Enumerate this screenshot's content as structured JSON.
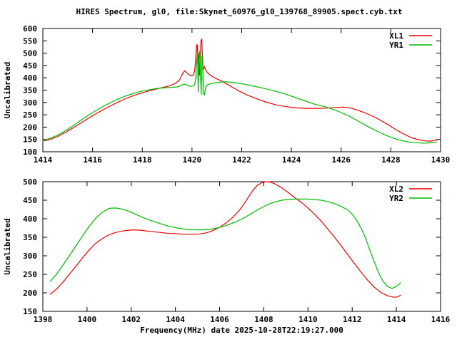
{
  "title": "HIRES Spectrum, gl0, file:Skynet_60976_gl0_139768_89905.spect.cyb.txt",
  "background": "#ffffff",
  "text_color": "#000000",
  "axis_color": "#000000",
  "chart_data": [
    {
      "type": "line",
      "panel": "top",
      "ylabel": "Uncalibrated",
      "xlim": [
        1414,
        1430
      ],
      "ylim": [
        100,
        600
      ],
      "xticks": [
        1414,
        1416,
        1418,
        1420,
        1422,
        1424,
        1426,
        1428,
        1430
      ],
      "yticks": [
        100,
        150,
        200,
        250,
        300,
        350,
        400,
        450,
        500,
        550,
        600
      ],
      "grid": false,
      "legend_position": "top-right",
      "series": [
        {
          "name": "XL1",
          "color": "#ee0000",
          "points": [
            [
              1414.05,
              144
            ],
            [
              1414.3,
              150
            ],
            [
              1414.6,
              162
            ],
            [
              1414.9,
              178
            ],
            [
              1415.2,
              196
            ],
            [
              1415.5,
              215
            ],
            [
              1415.8,
              234
            ],
            [
              1416.1,
              252
            ],
            [
              1416.4,
              269
            ],
            [
              1416.7,
              285
            ],
            [
              1417.0,
              300
            ],
            [
              1417.3,
              314
            ],
            [
              1417.6,
              326
            ],
            [
              1417.9,
              336
            ],
            [
              1418.2,
              345
            ],
            [
              1418.5,
              353
            ],
            [
              1418.8,
              360
            ],
            [
              1419.1,
              367
            ],
            [
              1419.35,
              378
            ],
            [
              1419.5,
              392
            ],
            [
              1419.6,
              412
            ],
            [
              1419.7,
              428
            ],
            [
              1419.78,
              422
            ],
            [
              1419.85,
              414
            ],
            [
              1419.95,
              408
            ],
            [
              1420.05,
              410
            ],
            [
              1420.1,
              425
            ],
            [
              1420.14,
              462
            ],
            [
              1420.18,
              530
            ],
            [
              1420.21,
              535
            ],
            [
              1420.24,
              450
            ],
            [
              1420.27,
              500
            ],
            [
              1420.3,
              410
            ],
            [
              1420.33,
              470
            ],
            [
              1420.36,
              550
            ],
            [
              1420.39,
              557
            ],
            [
              1420.42,
              490
            ],
            [
              1420.45,
              432
            ],
            [
              1420.5,
              445
            ],
            [
              1420.56,
              430
            ],
            [
              1420.63,
              420
            ],
            [
              1420.72,
              412
            ],
            [
              1420.82,
              405
            ],
            [
              1420.95,
              398
            ],
            [
              1421.1,
              391
            ],
            [
              1421.3,
              381
            ],
            [
              1421.6,
              363
            ],
            [
              1421.9,
              346
            ],
            [
              1422.2,
              331
            ],
            [
              1422.6,
              315
            ],
            [
              1423.0,
              301
            ],
            [
              1423.4,
              290
            ],
            [
              1423.8,
              283
            ],
            [
              1424.2,
              278
            ],
            [
              1424.6,
              276
            ],
            [
              1425.0,
              276
            ],
            [
              1425.4,
              277
            ],
            [
              1425.8,
              280
            ],
            [
              1426.1,
              281
            ],
            [
              1426.4,
              277
            ],
            [
              1426.7,
              268
            ],
            [
              1427.0,
              256
            ],
            [
              1427.3,
              243
            ],
            [
              1427.6,
              227
            ],
            [
              1427.9,
              209
            ],
            [
              1428.2,
              190
            ],
            [
              1428.5,
              173
            ],
            [
              1428.8,
              158
            ],
            [
              1429.1,
              149
            ],
            [
              1429.4,
              144
            ],
            [
              1429.6,
              143
            ],
            [
              1429.85,
              148
            ]
          ]
        },
        {
          "name": "YR1",
          "color": "#00bb00",
          "points": [
            [
              1414.05,
              147
            ],
            [
              1414.35,
              156
            ],
            [
              1414.65,
              170
            ],
            [
              1414.95,
              188
            ],
            [
              1415.25,
              208
            ],
            [
              1415.55,
              229
            ],
            [
              1415.85,
              249
            ],
            [
              1416.15,
              268
            ],
            [
              1416.45,
              285
            ],
            [
              1416.75,
              301
            ],
            [
              1417.05,
              315
            ],
            [
              1417.35,
              327
            ],
            [
              1417.65,
              337
            ],
            [
              1417.95,
              345
            ],
            [
              1418.25,
              351
            ],
            [
              1418.55,
              356
            ],
            [
              1418.85,
              359
            ],
            [
              1419.15,
              361
            ],
            [
              1419.4,
              363
            ],
            [
              1419.55,
              368
            ],
            [
              1419.65,
              374
            ],
            [
              1419.75,
              373
            ],
            [
              1419.85,
              367
            ],
            [
              1419.95,
              365
            ],
            [
              1420.05,
              368
            ],
            [
              1420.1,
              372
            ],
            [
              1420.15,
              394
            ],
            [
              1420.19,
              465
            ],
            [
              1420.22,
              500
            ],
            [
              1420.25,
              342
            ],
            [
              1420.28,
              478
            ],
            [
              1420.31,
              508
            ],
            [
              1420.34,
              420
            ],
            [
              1420.37,
              332
            ],
            [
              1420.4,
              488
            ],
            [
              1420.43,
              458
            ],
            [
              1420.46,
              336
            ],
            [
              1420.5,
              331
            ],
            [
              1420.56,
              366
            ],
            [
              1420.65,
              373
            ],
            [
              1420.8,
              377
            ],
            [
              1421.0,
              380
            ],
            [
              1421.25,
              384
            ],
            [
              1421.5,
              383
            ],
            [
              1421.8,
              379
            ],
            [
              1422.1,
              374
            ],
            [
              1422.5,
              366
            ],
            [
              1422.9,
              357
            ],
            [
              1423.3,
              347
            ],
            [
              1423.7,
              336
            ],
            [
              1424.1,
              322
            ],
            [
              1424.5,
              308
            ],
            [
              1424.9,
              294
            ],
            [
              1425.3,
              284
            ],
            [
              1425.7,
              271
            ],
            [
              1426.0,
              259
            ],
            [
              1426.3,
              246
            ],
            [
              1426.6,
              229
            ],
            [
              1426.9,
              212
            ],
            [
              1427.2,
              196
            ],
            [
              1427.5,
              181
            ],
            [
              1427.8,
              167
            ],
            [
              1428.1,
              155
            ],
            [
              1428.4,
              146
            ],
            [
              1428.7,
              140
            ],
            [
              1429.0,
              137
            ],
            [
              1429.3,
              135
            ],
            [
              1429.6,
              136
            ],
            [
              1429.85,
              140
            ]
          ]
        }
      ]
    },
    {
      "type": "line",
      "panel": "bottom",
      "xlabel": "Frequency(MHz) date 2025-10-28T22:19:27.000",
      "ylabel": "Uncalibrated",
      "xlim": [
        1398,
        1416
      ],
      "ylim": [
        150,
        500
      ],
      "xticks": [
        1398,
        1400,
        1402,
        1404,
        1406,
        1408,
        1410,
        1412,
        1414,
        1416
      ],
      "yticks": [
        150,
        200,
        250,
        300,
        350,
        400,
        450,
        500
      ],
      "grid": false,
      "legend_position": "top-right",
      "series": [
        {
          "name": "XL2",
          "color": "#ee0000",
          "points": [
            [
              1398.32,
              196
            ],
            [
              1398.6,
              209
            ],
            [
              1398.9,
              228
            ],
            [
              1399.2,
              250
            ],
            [
              1399.5,
              272
            ],
            [
              1399.8,
              295
            ],
            [
              1400.1,
              316
            ],
            [
              1400.4,
              334
            ],
            [
              1400.7,
              347
            ],
            [
              1401.0,
              357
            ],
            [
              1401.3,
              363
            ],
            [
              1401.6,
              367
            ],
            [
              1401.9,
              369
            ],
            [
              1402.1,
              370
            ],
            [
              1402.4,
              369
            ],
            [
              1402.7,
              367
            ],
            [
              1403.0,
              365
            ],
            [
              1403.3,
              363
            ],
            [
              1403.6,
              361
            ],
            [
              1403.9,
              360
            ],
            [
              1404.2,
              359
            ],
            [
              1404.5,
              358
            ],
            [
              1404.8,
              358
            ],
            [
              1405.1,
              359
            ],
            [
              1405.4,
              362
            ],
            [
              1405.7,
              368
            ],
            [
              1406.0,
              377
            ],
            [
              1406.3,
              389
            ],
            [
              1406.6,
              404
            ],
            [
              1406.9,
              423
            ],
            [
              1407.1,
              440
            ],
            [
              1407.3,
              458
            ],
            [
              1407.5,
              476
            ],
            [
              1407.7,
              490
            ],
            [
              1407.9,
              497
            ],
            [
              1408.1,
              500
            ],
            [
              1408.3,
              499
            ],
            [
              1408.5,
              494
            ],
            [
              1408.8,
              484
            ],
            [
              1409.1,
              471
            ],
            [
              1409.4,
              457
            ],
            [
              1409.7,
              444
            ],
            [
              1410.0,
              429
            ],
            [
              1410.3,
              412
            ],
            [
              1410.6,
              393
            ],
            [
              1410.9,
              372
            ],
            [
              1411.2,
              350
            ],
            [
              1411.5,
              327
            ],
            [
              1411.8,
              303
            ],
            [
              1412.1,
              279
            ],
            [
              1412.4,
              256
            ],
            [
              1412.7,
              234
            ],
            [
              1413.0,
              215
            ],
            [
              1413.3,
              201
            ],
            [
              1413.6,
              192
            ],
            [
              1413.9,
              188
            ],
            [
              1414.05,
              189
            ],
            [
              1414.2,
              194
            ]
          ]
        },
        {
          "name": "YR2",
          "color": "#00bb00",
          "points": [
            [
              1398.32,
              230
            ],
            [
              1398.6,
              249
            ],
            [
              1398.9,
              274
            ],
            [
              1399.2,
              300
            ],
            [
              1399.5,
              327
            ],
            [
              1399.8,
              354
            ],
            [
              1400.1,
              380
            ],
            [
              1400.4,
              402
            ],
            [
              1400.7,
              418
            ],
            [
              1401.0,
              428
            ],
            [
              1401.3,
              429
            ],
            [
              1401.6,
              426
            ],
            [
              1401.9,
              420
            ],
            [
              1402.2,
              412
            ],
            [
              1402.5,
              404
            ],
            [
              1402.8,
              397
            ],
            [
              1403.1,
              391
            ],
            [
              1403.4,
              385
            ],
            [
              1403.7,
              380
            ],
            [
              1404.0,
              376
            ],
            [
              1404.3,
              373
            ],
            [
              1404.6,
              371
            ],
            [
              1404.9,
              370
            ],
            [
              1405.2,
              370
            ],
            [
              1405.5,
              371
            ],
            [
              1405.8,
              374
            ],
            [
              1406.1,
              378
            ],
            [
              1406.4,
              384
            ],
            [
              1406.7,
              391
            ],
            [
              1407.0,
              399
            ],
            [
              1407.3,
              409
            ],
            [
              1407.6,
              420
            ],
            [
              1407.9,
              430
            ],
            [
              1408.2,
              439
            ],
            [
              1408.5,
              445
            ],
            [
              1408.8,
              450
            ],
            [
              1409.1,
              452
            ],
            [
              1409.4,
              453
            ],
            [
              1409.7,
              453
            ],
            [
              1410.0,
              453
            ],
            [
              1410.3,
              452
            ],
            [
              1410.6,
              450
            ],
            [
              1410.9,
              446
            ],
            [
              1411.2,
              441
            ],
            [
              1411.5,
              433
            ],
            [
              1411.8,
              424
            ],
            [
              1412.0,
              412
            ],
            [
              1412.2,
              396
            ],
            [
              1412.4,
              375
            ],
            [
              1412.6,
              348
            ],
            [
              1412.8,
              315
            ],
            [
              1413.0,
              283
            ],
            [
              1413.2,
              253
            ],
            [
              1413.4,
              231
            ],
            [
              1413.6,
              217
            ],
            [
              1413.8,
              212
            ],
            [
              1414.0,
              217
            ],
            [
              1414.2,
              228
            ]
          ]
        }
      ]
    }
  ]
}
